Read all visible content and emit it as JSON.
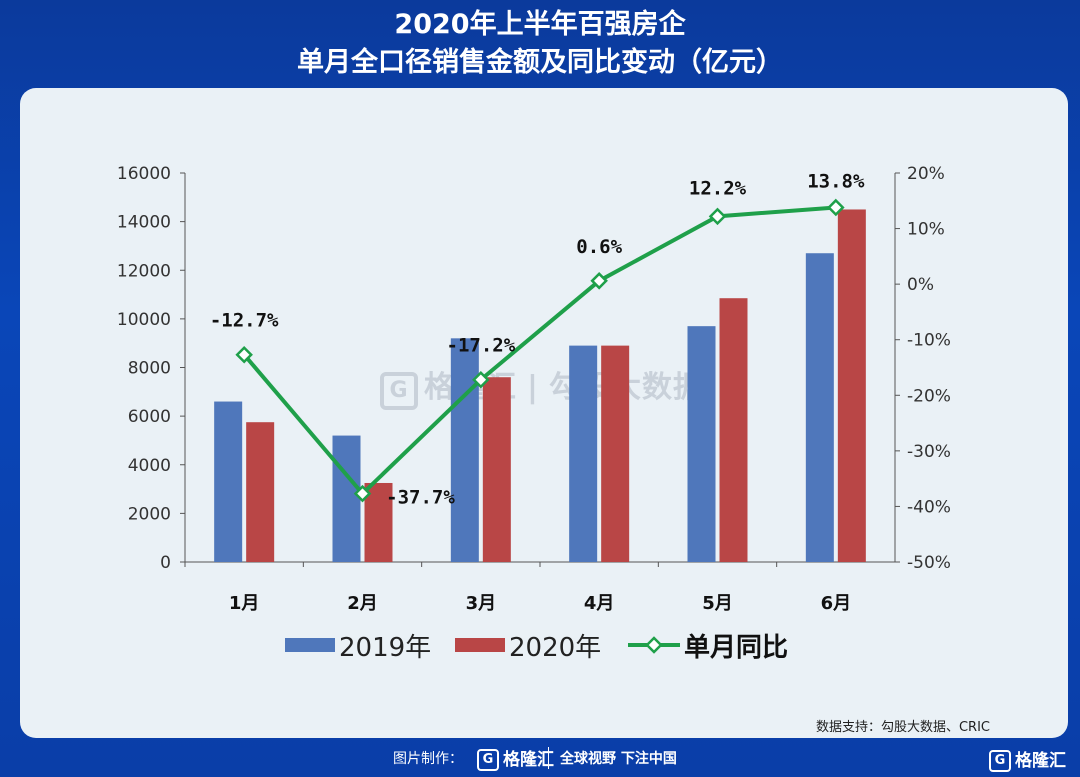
{
  "title": {
    "line1": "2020年上半年百强房企",
    "line2": "单月全口径销售金额及同比变动（亿元）"
  },
  "watermark": {
    "brand": "格隆汇",
    "text": "勾股大数据"
  },
  "source": "数据支持：勾股大数据、CRIC",
  "footer": {
    "made_by": "图片制作：",
    "brand": "格隆汇",
    "slogan": "全球视野 下注中国",
    "corner_brand": "格隆汇"
  },
  "colors": {
    "bar2019": "#4f77bb",
    "bar2020": "#b94646",
    "line": "#1fa04a"
  },
  "chart_data": {
    "type": "bar",
    "categories": [
      "1月",
      "2月",
      "3月",
      "4月",
      "5月",
      "6月"
    ],
    "series": [
      {
        "name": "2019年",
        "type": "bar",
        "values": [
          6600,
          5200,
          9200,
          8900,
          9700,
          12700
        ]
      },
      {
        "name": "2020年",
        "type": "bar",
        "values": [
          5750,
          3250,
          7600,
          8900,
          10850,
          14500
        ]
      },
      {
        "name": "单月同比",
        "type": "line",
        "axis": "right",
        "values": [
          -12.7,
          -37.7,
          -17.2,
          0.6,
          12.2,
          13.8
        ]
      }
    ],
    "data_labels": [
      "-12.7%",
      "-37.7%",
      "-17.2%",
      "0.6%",
      "12.2%",
      "13.8%"
    ],
    "ylim_left": [
      0,
      16000
    ],
    "yticks_left": [
      "0",
      "2000",
      "4000",
      "6000",
      "8000",
      "10000",
      "12000",
      "14000",
      "16000"
    ],
    "ylim_right": [
      -50,
      20
    ],
    "yticks_right": [
      "-50%",
      "-40%",
      "-30%",
      "-20%",
      "-10%",
      "0%",
      "10%",
      "20%"
    ],
    "legend_position": "bottom",
    "grid": false
  }
}
